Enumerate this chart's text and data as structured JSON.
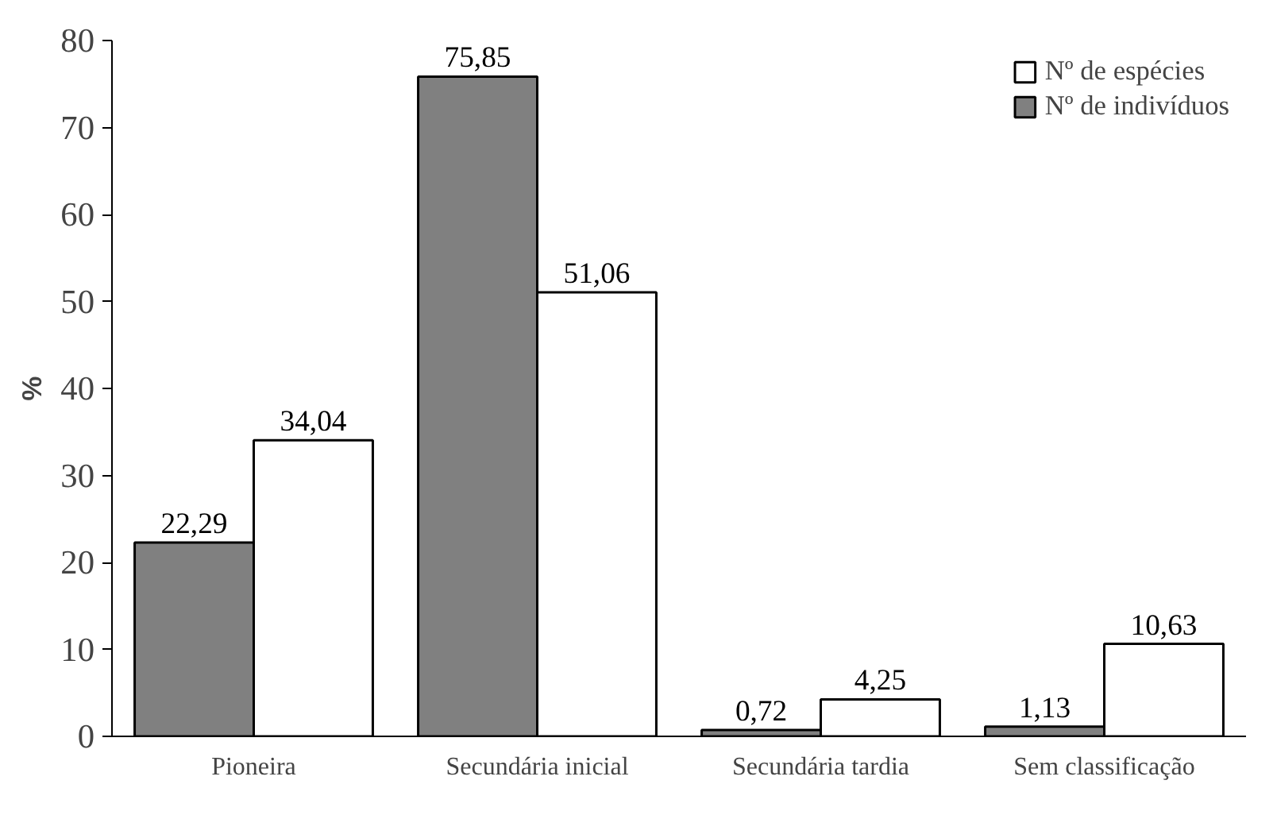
{
  "chart_data": {
    "type": "bar",
    "ylabel": "%",
    "categories": [
      "Pioneira",
      "Secundária inicial",
      "Secundária tardia",
      "Sem classificação"
    ],
    "series": [
      {
        "name": "Nº de indivíduos",
        "color": "#808080",
        "values": [
          22.29,
          75.85,
          0.72,
          1.13
        ],
        "value_labels": [
          "22,29",
          "75,85",
          "0,72",
          "1,13"
        ]
      },
      {
        "name": "Nº de espécies",
        "color": "#ffffff",
        "values": [
          34.04,
          51.06,
          4.25,
          10.63
        ],
        "value_labels": [
          "34,04",
          "51,06",
          "4,25",
          "10,63"
        ]
      }
    ],
    "ylim": [
      0,
      80
    ],
    "yticks": [
      0,
      10,
      20,
      30,
      40,
      50,
      60,
      70,
      80
    ],
    "grid": false,
    "legend": "top right"
  }
}
